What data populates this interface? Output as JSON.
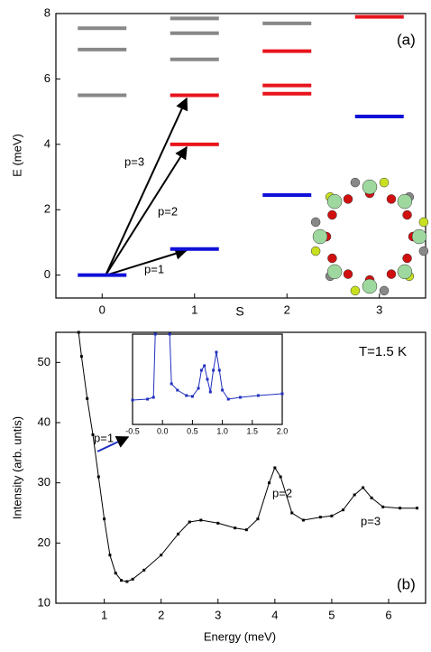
{
  "chart_data": [
    {
      "type": "levels",
      "panel_label": "(a)",
      "xlabel": "S",
      "ylabel": "E (meV)",
      "xlim": [
        -0.5,
        3.5
      ],
      "xticks": [
        0,
        1,
        2,
        3
      ],
      "ylim": [
        -0.7,
        8
      ],
      "yticks": [
        0,
        2,
        4,
        6,
        8
      ],
      "annotations": [
        "p=1",
        "p=2",
        "p=3"
      ],
      "series": [
        {
          "color": "#888888",
          "x": [
            0,
            0,
            0,
            1,
            1,
            1,
            2
          ],
          "values": [
            5.5,
            6.9,
            7.55,
            6.6,
            7.4,
            7.85,
            7.7
          ]
        },
        {
          "color": "#e8141c",
          "x": [
            1,
            1,
            2,
            2,
            2,
            3
          ],
          "values": [
            4.0,
            5.5,
            5.55,
            5.8,
            6.85,
            7.9
          ]
        },
        {
          "color": "#1010d8",
          "x": [
            0,
            1,
            2,
            3
          ],
          "values": [
            0,
            0.8,
            2.45,
            4.85
          ]
        }
      ]
    },
    {
      "type": "line",
      "panel_label": "(b)",
      "xlabel": "Energy (meV)",
      "ylabel": "Intensity (arb. untis)",
      "annotations": [
        "T=1.5 K",
        "p=1",
        "p=2",
        "p=3"
      ],
      "xlim": [
        0.15,
        6.65
      ],
      "xticks": [
        1,
        2,
        3,
        4,
        5,
        6
      ],
      "ylim": [
        10,
        55
      ],
      "yticks": [
        10,
        20,
        30,
        40,
        50
      ],
      "series": [
        {
          "color": "#000000",
          "x": [
            0.55,
            0.6,
            0.7,
            0.8,
            0.9,
            1.0,
            1.1,
            1.2,
            1.3,
            1.4,
            1.5,
            1.7,
            2.0,
            2.3,
            2.5,
            2.7,
            3.0,
            3.3,
            3.5,
            3.7,
            3.9,
            4.0,
            4.1,
            4.3,
            4.5,
            4.8,
            5.0,
            5.2,
            5.4,
            5.55,
            5.7,
            5.9,
            6.2,
            6.5
          ],
          "values": [
            55,
            51,
            44,
            38,
            31,
            24,
            18,
            15,
            13.8,
            13.6,
            14,
            15.5,
            18,
            21.5,
            23.5,
            23.8,
            23.3,
            22.5,
            22.2,
            24,
            30,
            32.5,
            31,
            25,
            23.8,
            24.3,
            24.5,
            25.5,
            28,
            29.2,
            27.5,
            26,
            25.8,
            25.8
          ]
        }
      ]
    },
    {
      "type": "line",
      "xlim": [
        -0.5,
        2.0
      ],
      "xticks": [
        {
          "value": -0.5,
          "label": "-0.5"
        },
        {
          "value": 0,
          "label": "0.0"
        },
        {
          "value": 0.5,
          "label": "0.5"
        },
        {
          "value": 1,
          "label": "1.0"
        },
        {
          "value": 1.5,
          "label": "1.5"
        },
        {
          "value": 2,
          "label": "2.0"
        }
      ],
      "ylim": [
        0,
        10
      ],
      "series": [
        {
          "color": "#2030c0",
          "x": [
            -0.5,
            -0.25,
            -0.15,
            -0.12,
            null,
            0.12,
            0.15,
            0.25,
            0.4,
            0.5,
            0.6,
            0.65,
            0.7,
            0.75,
            0.8,
            0.85,
            0.9,
            0.95,
            1.0,
            1.1,
            1.3,
            1.6,
            2.0
          ],
          "values": [
            2.7,
            2.8,
            3.0,
            10,
            null,
            10,
            4.5,
            3.8,
            3.2,
            3.1,
            4,
            6,
            6.5,
            5,
            3.6,
            6,
            8,
            6,
            3.8,
            2.8,
            3.0,
            3.2,
            3.4
          ]
        }
      ]
    }
  ]
}
